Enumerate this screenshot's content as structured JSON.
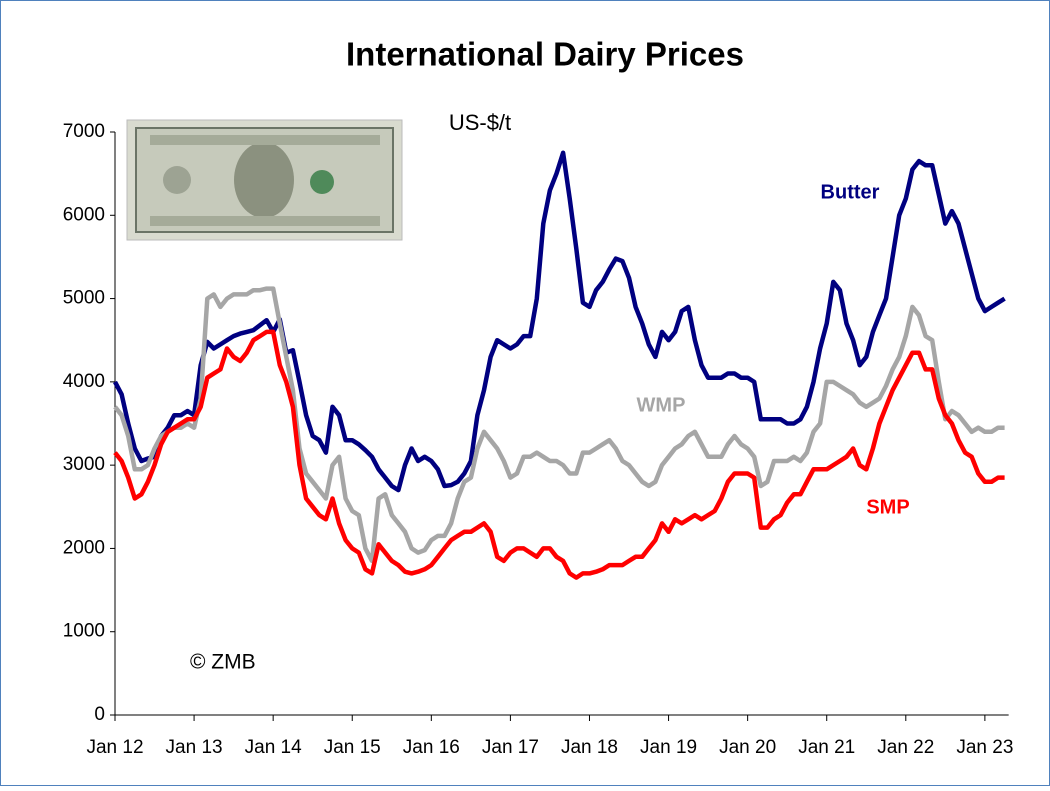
{
  "chart_data": {
    "type": "line",
    "title": "International Dairy Prices",
    "y_unit": "US-$/t",
    "annotations": {
      "credit": "© ZMB"
    },
    "categories": [
      "Jan 12",
      null,
      null,
      null,
      null,
      null,
      null,
      null,
      null,
      null,
      null,
      null,
      "Jan 13",
      null,
      null,
      null,
      null,
      null,
      null,
      null,
      null,
      null,
      null,
      null,
      "Jan 14",
      null,
      null,
      null,
      null,
      null,
      null,
      null,
      null,
      null,
      null,
      null,
      "Jan 15",
      null,
      null,
      null,
      null,
      null,
      null,
      null,
      null,
      null,
      null,
      null,
      "Jan 16",
      null,
      null,
      null,
      null,
      null,
      null,
      null,
      null,
      null,
      null,
      null,
      "Jan 17",
      null,
      null,
      null,
      null,
      null,
      null,
      null,
      null,
      null,
      null,
      null,
      "Jan 18",
      null,
      null,
      null,
      null,
      null,
      null,
      null,
      null,
      null,
      null,
      null,
      "Jan 19",
      null,
      null,
      null,
      null,
      null,
      null,
      null,
      null,
      null,
      null,
      null,
      "Jan 20",
      null,
      null,
      null,
      null,
      null,
      null,
      null,
      null,
      null,
      null,
      null,
      "Jan 21",
      null,
      null,
      null,
      null,
      null,
      null,
      null,
      null,
      null,
      null,
      null,
      "Jan 22",
      null,
      null,
      null,
      null,
      null,
      null,
      null,
      null,
      null,
      null,
      null,
      "Jan 23",
      null,
      null,
      null
    ],
    "series": [
      {
        "name": "Butter",
        "color": "#000080",
        "values": [
          4000,
          3850,
          3500,
          3200,
          3050,
          3080,
          3100,
          3350,
          3450,
          3600,
          3600,
          3650,
          3600,
          4200,
          4480,
          4400,
          4450,
          4500,
          4550,
          4580,
          4600,
          4620,
          4680,
          4740,
          4600,
          4750,
          4350,
          4380,
          4000,
          3600,
          3350,
          3300,
          3150,
          3700,
          3600,
          3300,
          3300,
          3250,
          3180,
          3100,
          2950,
          2850,
          2750,
          2700,
          3000,
          3200,
          3050,
          3100,
          3050,
          2950,
          2750,
          2760,
          2800,
          2900,
          3050,
          3600,
          3900,
          4300,
          4500,
          4450,
          4400,
          4450,
          4550,
          4550,
          5000,
          5900,
          6300,
          6500,
          6750,
          6200,
          5600,
          4950,
          4900,
          5100,
          5200,
          5350,
          5480,
          5450,
          5250,
          4900,
          4700,
          4450,
          4300,
          4600,
          4500,
          4600,
          4850,
          4900,
          4500,
          4200,
          4050,
          4050,
          4050,
          4100,
          4100,
          4050,
          4050,
          4000,
          3550,
          3550,
          3550,
          3550,
          3500,
          3500,
          3550,
          3700,
          4000,
          4400,
          4700,
          5200,
          5100,
          4700,
          4500,
          4200,
          4300,
          4600,
          4800,
          5000,
          5500,
          6000,
          6200,
          6550,
          6650,
          6600,
          6600,
          6250,
          5900,
          6050,
          5900,
          5600,
          5300,
          5000,
          4850,
          4900,
          4950,
          5000
        ]
      },
      {
        "name": "WMP",
        "color": "#a6a6a6",
        "values": [
          3700,
          3600,
          3350,
          2950,
          2950,
          3000,
          3200,
          3350,
          3400,
          3450,
          3450,
          3500,
          3450,
          3800,
          5000,
          5050,
          4900,
          5000,
          5050,
          5050,
          5050,
          5100,
          5100,
          5120,
          5120,
          4700,
          4300,
          3900,
          3200,
          2900,
          2800,
          2700,
          2600,
          3000,
          3100,
          2600,
          2450,
          2400,
          2000,
          1850,
          2600,
          2650,
          2400,
          2300,
          2200,
          2000,
          1950,
          1980,
          2100,
          2150,
          2150,
          2300,
          2600,
          2800,
          2850,
          3200,
          3400,
          3300,
          3200,
          3050,
          2850,
          2900,
          3100,
          3100,
          3150,
          3100,
          3050,
          3050,
          3000,
          2900,
          2900,
          3150,
          3150,
          3200,
          3250,
          3300,
          3200,
          3050,
          3000,
          2900,
          2800,
          2750,
          2800,
          3000,
          3100,
          3200,
          3250,
          3350,
          3400,
          3250,
          3100,
          3100,
          3100,
          3250,
          3350,
          3250,
          3200,
          3100,
          2750,
          2800,
          3050,
          3050,
          3050,
          3100,
          3050,
          3150,
          3400,
          3500,
          4000,
          4000,
          3950,
          3900,
          3850,
          3750,
          3700,
          3750,
          3800,
          3950,
          4150,
          4300,
          4550,
          4900,
          4800,
          4550,
          4500,
          4000,
          3550,
          3650,
          3600,
          3500,
          3400,
          3450,
          3400,
          3400,
          3450,
          3450
        ]
      },
      {
        "name": "SMP",
        "color": "#ff0000",
        "values": [
          3150,
          3050,
          2850,
          2600,
          2650,
          2800,
          3000,
          3250,
          3400,
          3450,
          3500,
          3550,
          3550,
          3700,
          4050,
          4100,
          4150,
          4400,
          4300,
          4250,
          4350,
          4500,
          4550,
          4600,
          4600,
          4200,
          4000,
          3700,
          3000,
          2600,
          2500,
          2400,
          2350,
          2600,
          2300,
          2100,
          2000,
          1950,
          1750,
          1700,
          2050,
          1950,
          1850,
          1800,
          1720,
          1700,
          1720,
          1750,
          1800,
          1900,
          2000,
          2100,
          2150,
          2200,
          2200,
          2250,
          2300,
          2200,
          1900,
          1850,
          1950,
          2000,
          2000,
          1950,
          1900,
          2000,
          2000,
          1900,
          1850,
          1700,
          1650,
          1700,
          1700,
          1720,
          1750,
          1800,
          1800,
          1800,
          1850,
          1900,
          1900,
          2000,
          2100,
          2300,
          2200,
          2350,
          2300,
          2350,
          2400,
          2350,
          2400,
          2450,
          2600,
          2800,
          2900,
          2900,
          2900,
          2850,
          2250,
          2250,
          2350,
          2400,
          2550,
          2650,
          2650,
          2800,
          2950,
          2950,
          2950,
          3000,
          3050,
          3100,
          3200,
          3000,
          2950,
          3200,
          3500,
          3700,
          3900,
          4050,
          4200,
          4350,
          4350,
          4150,
          4150,
          3800,
          3600,
          3500,
          3300,
          3150,
          3100,
          2900,
          2800,
          2800,
          2850,
          2850
        ]
      }
    ],
    "ylim": [
      0,
      7000
    ],
    "yticks": [
      0,
      1000,
      2000,
      3000,
      4000,
      5000,
      6000,
      7000
    ],
    "grid": false
  }
}
